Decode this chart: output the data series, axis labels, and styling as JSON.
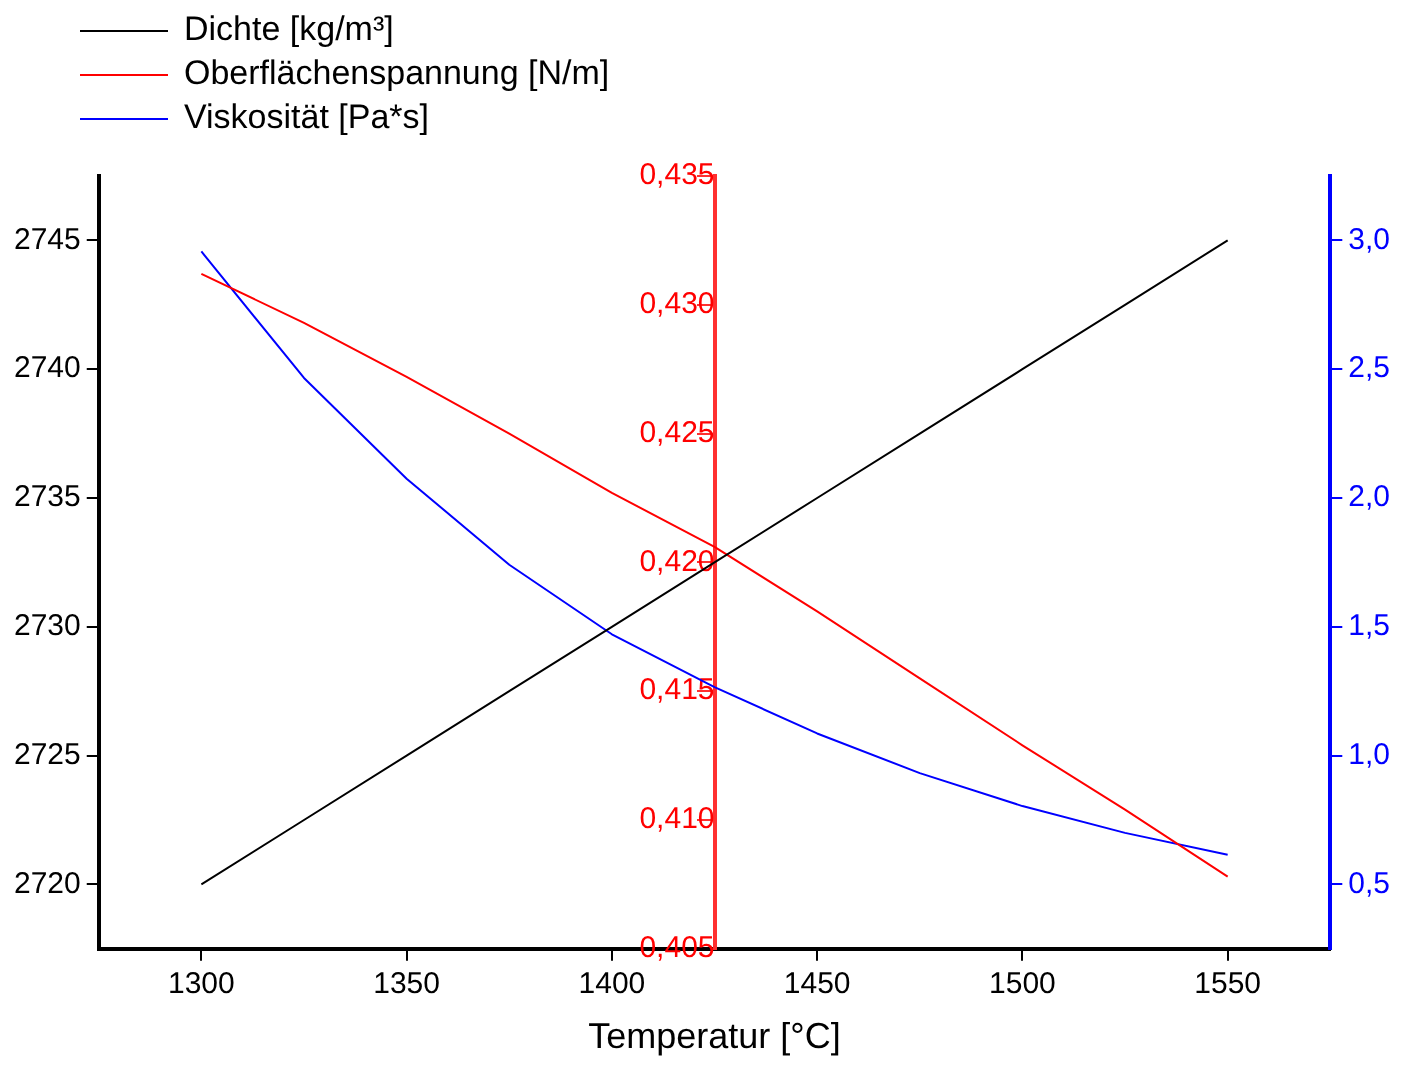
{
  "chart_data": {
    "type": "line",
    "xlabel": "Temperatur [°C]",
    "x": [
      1300,
      1325,
      1350,
      1375,
      1400,
      1425,
      1450,
      1475,
      1500,
      1525,
      1550
    ],
    "xlim": [
      1275,
      1575
    ],
    "xticks": [
      1300,
      1350,
      1400,
      1450,
      1500,
      1550
    ],
    "ylim": [
      2717.5,
      2747.5
    ],
    "yticks": [
      2720,
      2725,
      2730,
      2735,
      2740,
      2745
    ],
    "y2lim": [
      0.405,
      0.435
    ],
    "y2ticks": [
      {
        "value": 0.405,
        "label": "0,405"
      },
      {
        "value": 0.41,
        "label": "0,410"
      },
      {
        "value": 0.415,
        "label": "0,415"
      },
      {
        "value": 0.42,
        "label": "0,420"
      },
      {
        "value": 0.425,
        "label": "0,425"
      },
      {
        "value": 0.43,
        "label": "0,430"
      },
      {
        "value": 0.435,
        "label": "0,435"
      }
    ],
    "y3lim": [
      0.25,
      3.25
    ],
    "y3ticks": [
      {
        "value": 0.5,
        "label": "0,5"
      },
      {
        "value": 1.0,
        "label": "1,0"
      },
      {
        "value": 1.5,
        "label": "1,5"
      },
      {
        "value": 2.0,
        "label": "2,0"
      },
      {
        "value": 2.5,
        "label": "2,5"
      },
      {
        "value": 3.0,
        "label": "3,0"
      }
    ],
    "grid": false,
    "legend": "top left",
    "marker": "none",
    "line_style": "solid",
    "series": [
      {
        "name": "Dichte [kg/m³]",
        "color": "#000000",
        "axis": "y",
        "values": [
          2720,
          2722.5,
          2725,
          2727.5,
          2730,
          2732.5,
          2735,
          2737.5,
          2740,
          2742.5,
          2745
        ]
      },
      {
        "name": "Oberflächenspannung [N/m]",
        "color": "#ff0000",
        "axis": "y2",
        "values": [
          0.4312,
          0.4293,
          0.4272,
          0.425,
          0.4227,
          0.4206,
          0.4181,
          0.4155,
          0.4129,
          0.4104,
          0.4078
        ]
      },
      {
        "name": "Viskosität [Pa*s]",
        "color": "#0000ff",
        "axis": "y3",
        "values": [
          2.957,
          2.466,
          2.075,
          1.741,
          1.471,
          1.266,
          1.086,
          0.932,
          0.804,
          0.7,
          0.615
        ]
      }
    ]
  }
}
